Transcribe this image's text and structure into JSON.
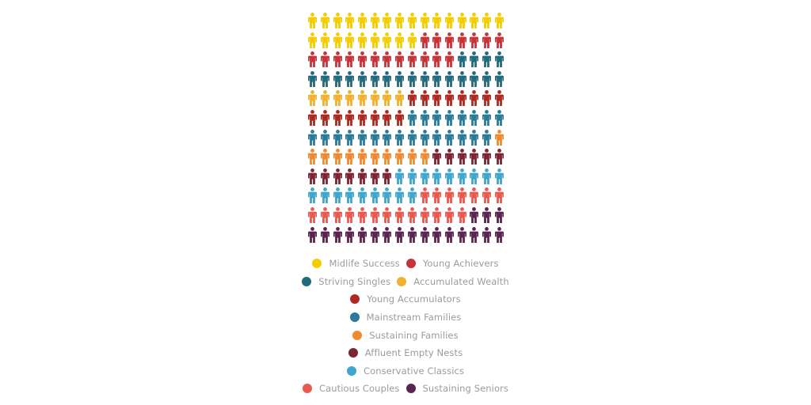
{
  "chart_data": {
    "type": "pictograph",
    "title": "",
    "icons_per_row": 16,
    "rows": 12,
    "total_icons": 192,
    "categories": [
      "Midlife Success",
      "Young Achievers",
      "Striving Singles",
      "Accumulated Wealth",
      "Young Accumulators",
      "Mainstream Families",
      "Sustaining Families",
      "Affluent Empty Nests",
      "Conservative Classics",
      "Cautious Couples",
      "Sustaining Seniors"
    ],
    "values": [
      25,
      19,
      20,
      8,
      16,
      23,
      11,
      13,
      18,
      20,
      19
    ],
    "colors": [
      "#f5cc00",
      "#c8333a",
      "#226a7d",
      "#f0b030",
      "#ad2a22",
      "#2b7a99",
      "#f08a30",
      "#7e2532",
      "#40a6cc",
      "#e85a50",
      "#5a2550"
    ],
    "legend_position": "bottom"
  },
  "legend": {
    "rows": [
      [
        {
          "label": "Midlife Success",
          "color": "#f5cc00"
        },
        {
          "label": "Young Achievers",
          "color": "#c8333a"
        }
      ],
      [
        {
          "label": "Striving Singles",
          "color": "#226a7d"
        },
        {
          "label": "Accumulated Wealth",
          "color": "#f0b030"
        }
      ],
      [
        {
          "label": "Young Accumulators",
          "color": "#ad2a22"
        }
      ],
      [
        {
          "label": "Mainstream Families",
          "color": "#2b7a99"
        }
      ],
      [
        {
          "label": "Sustaining Families",
          "color": "#f08a30"
        }
      ],
      [
        {
          "label": "Affluent Empty Nests",
          "color": "#7e2532"
        }
      ],
      [
        {
          "label": "Conservative Classics",
          "color": "#40a6cc"
        }
      ],
      [
        {
          "label": "Cautious Couples",
          "color": "#e85a50"
        },
        {
          "label": "Sustaining Seniors",
          "color": "#5a2550"
        }
      ]
    ]
  }
}
